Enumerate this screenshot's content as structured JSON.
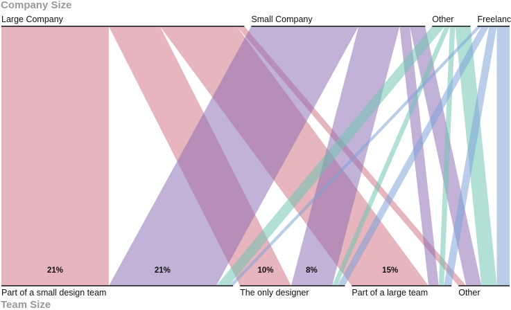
{
  "chart_data": {
    "type": "parallel-sets",
    "top_axis_title": "Company Size",
    "bottom_axis_title": "Team Size",
    "top_categories": [
      "Large Company",
      "Small Company",
      "Other",
      "Freelance"
    ],
    "bottom_categories": [
      "Part of a small design team",
      "The only designer",
      "Part of a large team",
      "Other"
    ],
    "flows": [
      {
        "from": "Large Company",
        "to": "Part of a small design team",
        "value": 21,
        "label": "21%"
      },
      {
        "from": "Large Company",
        "to": "The only designer",
        "value": 10,
        "label": "10%"
      },
      {
        "from": "Large Company",
        "to": "Part of a large team",
        "value": 15,
        "label": "15%"
      },
      {
        "from": "Large Company",
        "to": "Other",
        "value": 1.5,
        "label": ""
      },
      {
        "from": "Small Company",
        "to": "Part of a small design team",
        "value": 21,
        "label": "21%"
      },
      {
        "from": "Small Company",
        "to": "The only designer",
        "value": 8,
        "label": "8%"
      },
      {
        "from": "Small Company",
        "to": "Part of a large team",
        "value": 2,
        "label": ""
      },
      {
        "from": "Small Company",
        "to": "Other",
        "value": 3,
        "label": ""
      },
      {
        "from": "Other",
        "to": "Part of a small design team",
        "value": 2.5,
        "label": ""
      },
      {
        "from": "Other",
        "to": "The only designer",
        "value": 1,
        "label": ""
      },
      {
        "from": "Other",
        "to": "Part of a large team",
        "value": 1,
        "label": ""
      },
      {
        "from": "Other",
        "to": "Other",
        "value": 3,
        "label": ""
      },
      {
        "from": "Freelance",
        "to": "Part of a small design team",
        "value": 0.8,
        "label": ""
      },
      {
        "from": "Freelance",
        "to": "The only designer",
        "value": 1.5,
        "label": ""
      },
      {
        "from": "Freelance",
        "to": "Part of a large team",
        "value": 1.5,
        "label": ""
      },
      {
        "from": "Freelance",
        "to": "Other",
        "value": 2.5,
        "label": ""
      }
    ],
    "colors": {
      "Large Company": "#cf7180",
      "Small Company": "#8c6cb4",
      "Other": "#6cc3b0",
      "Freelance": "#7aa1d8"
    }
  }
}
